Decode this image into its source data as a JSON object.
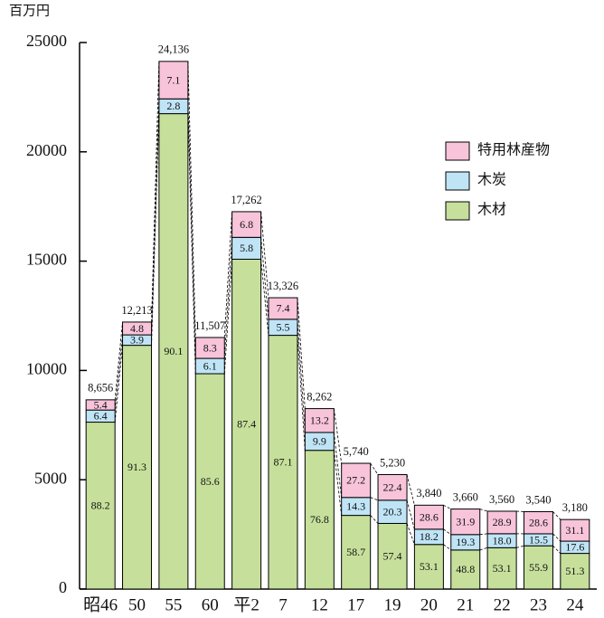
{
  "chart_data": {
    "type": "stacked-bar-percent",
    "y_unit": "百万円",
    "categories": [
      "昭46",
      "50",
      "55",
      "60",
      "平2",
      "7",
      "12",
      "17",
      "19",
      "20",
      "21",
      "22",
      "23",
      "24"
    ],
    "totals": [
      8656,
      12213,
      24136,
      11507,
      17262,
      13326,
      8262,
      5740,
      5230,
      3840,
      3660,
      3560,
      3540,
      3180
    ],
    "total_labels": [
      "8,656",
      "12,213",
      "24,136",
      "11,507",
      "17,262",
      "13,326",
      "8,262",
      "5,740",
      "5,230",
      "3,840",
      "3,660",
      "3,560",
      "3,540",
      "3,180"
    ],
    "series": [
      {
        "name": "木材",
        "color": "#c6e09c",
        "values": [
          88.2,
          91.3,
          90.1,
          85.6,
          87.4,
          87.1,
          76.8,
          58.7,
          57.4,
          53.1,
          48.8,
          53.1,
          55.9,
          51.3
        ],
        "value_labels": [
          "88.2",
          "91.3",
          "90.1",
          "85.6",
          "87.4",
          "87.1",
          "76.8",
          "58.7",
          "57.4",
          "53.1",
          "48.8",
          "53.1",
          "55.9",
          "51.3"
        ]
      },
      {
        "name": "木炭",
        "color": "#bfe4f6",
        "values": [
          6.4,
          3.9,
          2.8,
          6.1,
          5.8,
          5.5,
          9.9,
          14.3,
          20.3,
          18.2,
          19.3,
          18.0,
          15.5,
          17.6
        ],
        "value_labels": [
          "6.4",
          "3.9",
          "2.8",
          "6.1",
          "5.8",
          "5.5",
          "9.9",
          "14.3",
          "20.3",
          "18.2",
          "19.3",
          "18.0",
          "15.5",
          "17.6"
        ]
      },
      {
        "name": "特用林産物",
        "color": "#f8c4da",
        "values": [
          5.4,
          4.8,
          7.1,
          8.3,
          6.8,
          7.4,
          13.2,
          27.2,
          22.4,
          28.6,
          31.9,
          28.9,
          28.6,
          31.1
        ],
        "value_labels": [
          "5.4",
          "4.8",
          "7.1",
          "8.3",
          "6.8",
          "7.4",
          "13.2",
          "27.2",
          "22.4",
          "28.6",
          "31.9",
          "28.9",
          "28.6",
          "31.1"
        ]
      }
    ],
    "ylim": [
      0,
      25000
    ],
    "yticks": [
      0,
      5000,
      10000,
      15000,
      20000,
      25000
    ]
  }
}
